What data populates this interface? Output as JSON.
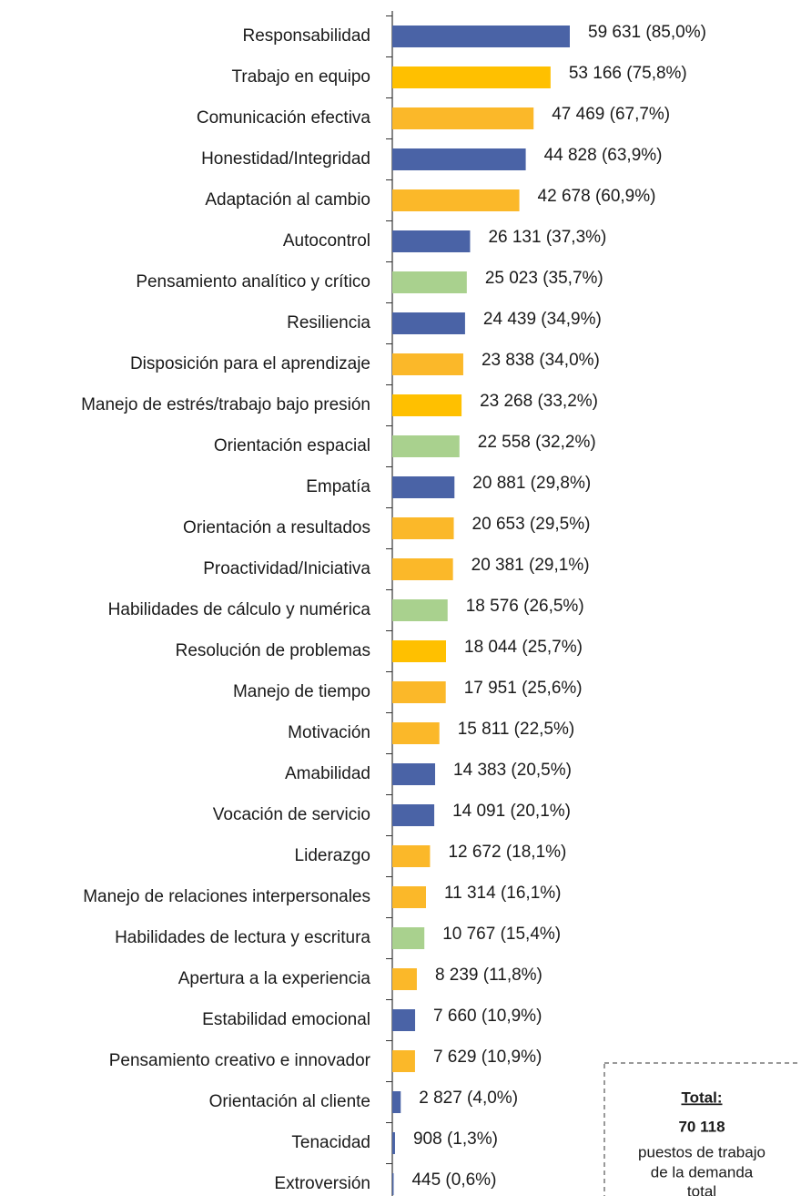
{
  "chart_data": {
    "type": "barh",
    "categories": [
      "Responsabilidad",
      "Trabajo en equipo",
      "Comunicación efectiva",
      "Honestidad/Integridad",
      "Adaptación al cambio",
      "Autocontrol",
      "Pensamiento analítico y crítico",
      "Resiliencia",
      "Disposición para el aprendizaje",
      "Manejo de estrés/trabajo bajo presión",
      "Orientación espacial",
      "Empatía",
      "Orientación a resultados",
      "Proactividad/Iniciativa",
      "Habilidades de cálculo y numérica",
      "Resolución de problemas",
      "Manejo de tiempo",
      "Motivación",
      "Amabilidad",
      "Vocación de servicio",
      "Liderazgo",
      "Manejo de relaciones interpersonales",
      "Habilidades de lectura y escritura",
      "Apertura a la experiencia",
      "Estabilidad emocional",
      "Pensamiento creativo e innovador",
      "Orientación al cliente",
      "Tenacidad",
      "Extroversión"
    ],
    "values": [
      59631,
      53166,
      47469,
      44828,
      42678,
      26131,
      25023,
      24439,
      23838,
      23268,
      22558,
      20881,
      20653,
      20381,
      18576,
      18044,
      17951,
      15811,
      14383,
      14091,
      12672,
      11314,
      10767,
      8239,
      7660,
      7629,
      2827,
      908,
      445
    ],
    "value_labels": [
      "59 631  (85,0%)",
      "53 166  (75,8%)",
      "47 469  (67,7%)",
      "44 828  (63,9%)",
      "42 678  (60,9%)",
      "26 131  (37,3%)",
      "25 023  (35,7%)",
      "24 439  (34,9%)",
      "23 838  (34,0%)",
      "23 268  (33,2%)",
      "22 558  (32,2%)",
      "20 881  (29,8%)",
      "20 653  (29,5%)",
      "20 381  (29,1%)",
      "18 576  (26,5%)",
      "18 044  (25,7%)",
      "17 951  (25,6%)",
      "15 811  (22,5%)",
      "14 383  (20,5%)",
      "14 091  (20,1%)",
      "12 672  (18,1%)",
      "11 314  (16,1%)",
      "10 767  (15,4%)",
      "8 239  (11,8%)",
      "7 660  (10,9%)",
      "7 629  (10,9%)",
      "2 827  (4,0%)",
      "908  (1,3%)",
      "445  (0,6%)"
    ],
    "colors": [
      "#4a63a6",
      "#ffc000",
      "#fbb829",
      "#4a63a6",
      "#fbb829",
      "#4a63a6",
      "#a9d18e",
      "#4a63a6",
      "#fbb829",
      "#ffc000",
      "#a9d18e",
      "#4a63a6",
      "#fbb829",
      "#fbb829",
      "#a9d18e",
      "#ffc000",
      "#fbb829",
      "#fbb829",
      "#4a63a6",
      "#4a63a6",
      "#fbb829",
      "#fbb829",
      "#a9d18e",
      "#fbb829",
      "#4a63a6",
      "#fbb829",
      "#4a63a6",
      "#4a63a6",
      "#4a63a6"
    ]
  },
  "box": {
    "title": "Total:",
    "value": "70 118",
    "lines": [
      "puestos de trabajo",
      "de la demanda",
      "total"
    ]
  }
}
